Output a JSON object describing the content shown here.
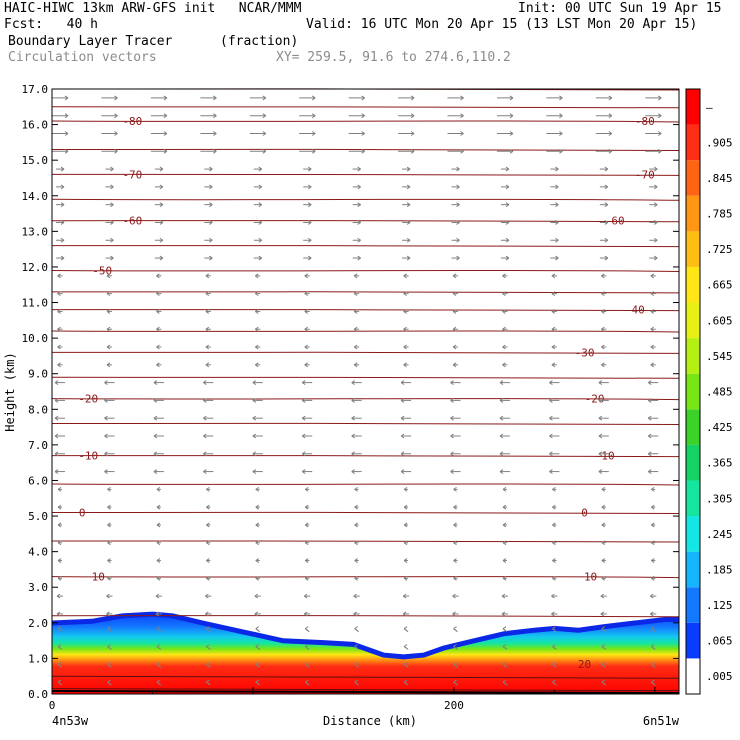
{
  "header": {
    "title_left": "HAIC-HIWC 13km ARW-GFS init   NCAR/MMM",
    "init": "Init: 00 UTC Sun 19 Apr 15",
    "fcst": "Fcst:   40 h",
    "valid": "Valid: 16 UTC Mon 20 Apr 15 (13 LST Mon 20 Apr 15)",
    "field": "Boundary Layer Tracer",
    "units": "(fraction)",
    "overlay": "Circulation vectors",
    "xy": "XY= 259.5, 91.6 to 274.6,110.2"
  },
  "chart_data": {
    "type": "cross-section",
    "ylabel": "Height (km)",
    "xlabel": "Distance (km)",
    "ylim": [
      0,
      17
    ],
    "yticks": [
      "0.0",
      "1.0",
      "2.0",
      "3.0",
      "4.0",
      "5.0",
      "6.0",
      "7.0",
      "8.0",
      "9.0",
      "10.0",
      "11.0",
      "12.0",
      "13.0",
      "14.0",
      "15.0",
      "16.0",
      "17.0"
    ],
    "xlim": [
      0,
      312
    ],
    "xticks": [
      {
        "value": 0,
        "label": "0"
      },
      {
        "value": 200,
        "label": "200"
      }
    ],
    "x_endpoints": {
      "left": "4n53w",
      "right": "6n51w"
    },
    "colorbar": {
      "labels": [
        ".005",
        ".065",
        ".125",
        ".185",
        ".245",
        ".305",
        ".365",
        ".425",
        ".485",
        ".545",
        ".605",
        ".665",
        ".725",
        ".785",
        ".845",
        ".905",
        "–"
      ],
      "colors": [
        "#ffffff",
        "#0a3cff",
        "#1478ff",
        "#14b4ff",
        "#14e6e6",
        "#14e6a0",
        "#14d264",
        "#3cd228",
        "#78e614",
        "#b4f014",
        "#e6f014",
        "#ffe614",
        "#ffbe14",
        "#ff9614",
        "#ff6414",
        "#ff2d14",
        "#ff0000"
      ]
    },
    "bl_tracer_top": [
      [
        0,
        2.05
      ],
      [
        20,
        2.1
      ],
      [
        35,
        2.25
      ],
      [
        50,
        2.3
      ],
      [
        60,
        2.25
      ],
      [
        75,
        2.05
      ],
      [
        95,
        1.8
      ],
      [
        115,
        1.55
      ],
      [
        135,
        1.5
      ],
      [
        150,
        1.45
      ],
      [
        160,
        1.25
      ],
      [
        165,
        1.15
      ],
      [
        175,
        1.1
      ],
      [
        185,
        1.15
      ],
      [
        195,
        1.35
      ],
      [
        210,
        1.55
      ],
      [
        225,
        1.75
      ],
      [
        240,
        1.85
      ],
      [
        250,
        1.9
      ],
      [
        262,
        1.85
      ],
      [
        275,
        1.95
      ],
      [
        290,
        2.05
      ],
      [
        305,
        2.15
      ],
      [
        312,
        2.15
      ]
    ],
    "isotherms": [
      {
        "label": "-80",
        "km": 16.1,
        "label_x": [
          40,
          295
        ]
      },
      {
        "label": "-70",
        "km": 14.6,
        "label_x": [
          40,
          295
        ]
      },
      {
        "label": "-60",
        "km": 13.3,
        "label_x": [
          40,
          280
        ]
      },
      {
        "label": "-50",
        "km": 11.9,
        "label_x": [
          25
        ]
      },
      {
        "label": "-40",
        "km": 10.8,
        "label_x": [
          290
        ]
      },
      {
        "label": "-30",
        "km": 9.6,
        "label_x": [
          265
        ]
      },
      {
        "label": "-20",
        "km": 8.3,
        "label_x": [
          18,
          270
        ]
      },
      {
        "label": "-10",
        "km": 6.7,
        "label_x": [
          18,
          275
        ]
      },
      {
        "label": "0",
        "km": 5.1,
        "label_x": [
          15,
          265
        ]
      },
      {
        "label": "10",
        "km": 3.3,
        "label_x": [
          23,
          268
        ]
      },
      {
        "label": "20",
        "km": 0.85,
        "label_x": [
          265
        ]
      }
    ],
    "contour_levels_km": [
      17.0,
      16.5,
      16.1,
      15.3,
      14.6,
      13.9,
      13.3,
      12.6,
      11.9,
      11.3,
      10.8,
      10.2,
      9.6,
      8.9,
      8.3,
      7.6,
      6.7,
      5.9,
      5.1,
      4.3,
      3.3,
      2.2
    ],
    "grid": false
  }
}
